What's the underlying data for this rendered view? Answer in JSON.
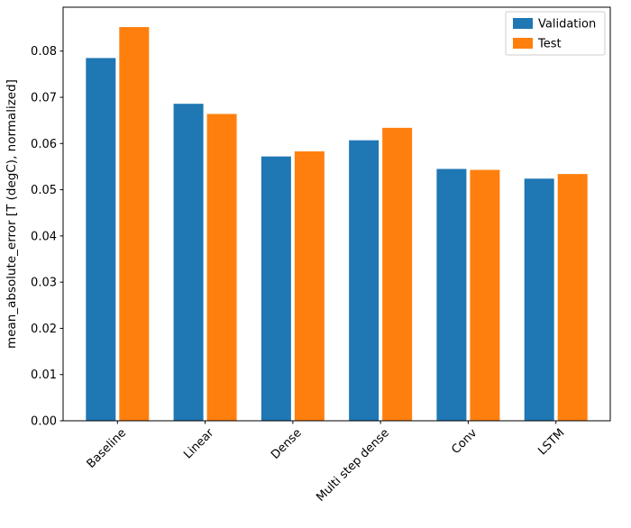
{
  "chart_data": {
    "type": "bar",
    "title": "",
    "categories": [
      "Baseline",
      "Linear",
      "Dense",
      "Multi step dense",
      "Conv",
      "LSTM"
    ],
    "series": [
      {
        "name": "Validation",
        "color": "#1f77b4",
        "values": [
          0.0785,
          0.0686,
          0.0572,
          0.0607,
          0.0545,
          0.0524
        ]
      },
      {
        "name": "Test",
        "color": "#ff7f0e",
        "values": [
          0.0852,
          0.0664,
          0.0583,
          0.0634,
          0.0543,
          0.0534
        ]
      }
    ],
    "xlabel": "",
    "ylabel": "mean_absolute_error [T (degC), normalized]",
    "ylim": [
      0,
      0.0895
    ],
    "ytick_values": [
      0.0,
      0.01,
      0.02,
      0.03,
      0.04,
      0.05,
      0.06,
      0.07,
      0.08
    ],
    "ytick_labels": [
      "0.00",
      "0.01",
      "0.02",
      "0.03",
      "0.04",
      "0.05",
      "0.06",
      "0.07",
      "0.08"
    ],
    "xtick_rotation": 45,
    "grid": false,
    "legend": {
      "position": "upper right",
      "entries": [
        "Validation",
        "Test"
      ]
    },
    "colors": {
      "background": "#ffffff",
      "spine": "#000000",
      "tick": "#000000",
      "legend_border": "#cccccc"
    }
  }
}
